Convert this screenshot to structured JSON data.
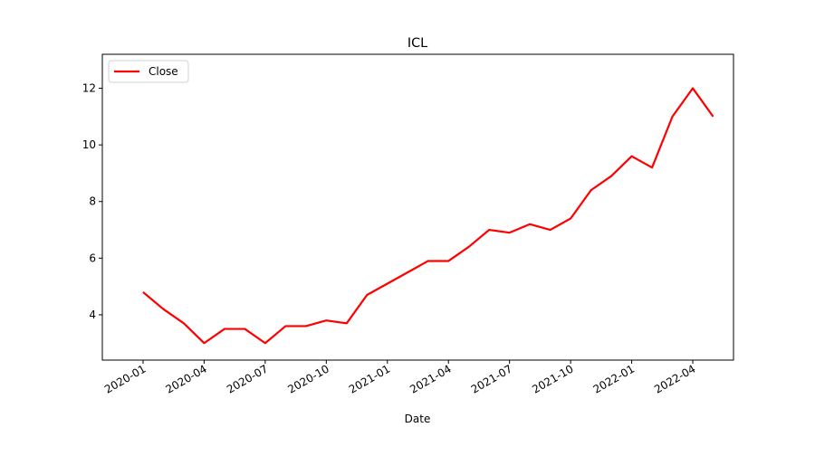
{
  "chart_data": {
    "type": "line",
    "title": "ICL",
    "xlabel": "Date",
    "x": [
      "2020-01",
      "2020-02",
      "2020-03",
      "2020-04",
      "2020-05",
      "2020-06",
      "2020-07",
      "2020-08",
      "2020-09",
      "2020-10",
      "2020-11",
      "2020-12",
      "2021-01",
      "2021-02",
      "2021-03",
      "2021-04",
      "2021-05",
      "2021-06",
      "2021-07",
      "2021-08",
      "2021-09",
      "2021-10",
      "2021-11",
      "2021-12",
      "2022-01",
      "2022-02",
      "2022-03",
      "2022-04",
      "2022-05"
    ],
    "series": [
      {
        "name": "Close",
        "color": "#ff0000",
        "values": [
          4.8,
          4.2,
          3.7,
          3.0,
          3.5,
          3.5,
          3.0,
          3.6,
          3.6,
          3.8,
          3.7,
          4.7,
          5.1,
          5.5,
          5.9,
          5.9,
          6.4,
          7.0,
          6.9,
          7.2,
          7.0,
          7.4,
          8.4,
          8.9,
          9.6,
          9.2,
          11.0,
          12.0,
          11.0
        ]
      }
    ],
    "xlim": [
      "2019-11",
      "2022-06"
    ],
    "xticks": [
      "2020-01",
      "2020-04",
      "2020-07",
      "2020-10",
      "2021-01",
      "2021-04",
      "2021-07",
      "2021-10",
      "2022-01",
      "2022-04"
    ],
    "ylim": [
      2.4,
      13.2
    ],
    "yticks": [
      4,
      6,
      8,
      10,
      12
    ],
    "legend": "upper left"
  }
}
